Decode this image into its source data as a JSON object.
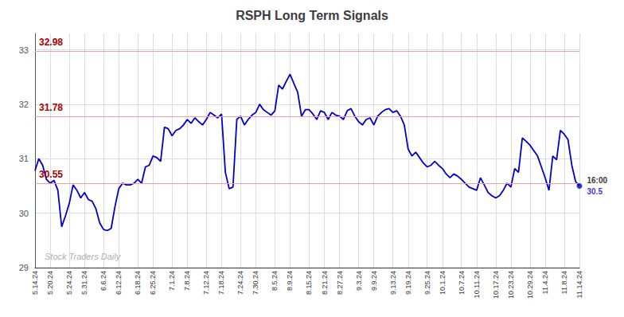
{
  "chart_data": {
    "type": "line",
    "title": "RSPH Long Term Signals",
    "background_color": "#ffffff",
    "color": "#0000cc",
    "marker": "circle",
    "grid": true,
    "ylim": [
      29,
      33.3
    ],
    "yticks": [
      29,
      30,
      31,
      32,
      33
    ],
    "hlines": [
      32.98,
      31.78,
      30.55
    ],
    "hline_color": "#f5a0a0",
    "hline_label_color": "#aa0000",
    "watermark": "Stock Traders Daily",
    "watermark_color": "#b0b0b0",
    "annotations": [
      {
        "text": "16:00",
        "color": "#000000"
      },
      {
        "text": "30.5",
        "color": "#0000cc"
      }
    ],
    "categories": [
      "5.14.24",
      null,
      null,
      null,
      "5.20.24",
      null,
      null,
      null,
      null,
      "5.24.24",
      null,
      null,
      null,
      "5.31.24",
      null,
      null,
      null,
      null,
      "6.6.24",
      null,
      null,
      null,
      "6.12.24",
      null,
      null,
      null,
      null,
      "6.18.24",
      null,
      null,
      null,
      "6.25.24",
      null,
      null,
      null,
      null,
      "7.1.24",
      null,
      null,
      null,
      "7.8.24",
      null,
      null,
      null,
      null,
      "7.12.24",
      null,
      null,
      null,
      "7.18.24",
      null,
      null,
      null,
      null,
      "7.24.24",
      null,
      null,
      null,
      "7.30.24",
      null,
      null,
      null,
      null,
      "8.5.24",
      null,
      null,
      null,
      "8.9.24",
      null,
      null,
      null,
      null,
      "8.15.24",
      null,
      null,
      null,
      "8.21.24",
      null,
      null,
      null,
      "8.27.24",
      null,
      null,
      null,
      null,
      "9.3.24",
      null,
      null,
      null,
      "9.9.24",
      null,
      null,
      null,
      null,
      "9.13.24",
      null,
      null,
      null,
      "9.19.24",
      null,
      null,
      null,
      null,
      "9.25.24",
      null,
      null,
      null,
      "10.1.24",
      null,
      null,
      null,
      null,
      "10.7.24",
      null,
      null,
      null,
      "10.11.24",
      null,
      null,
      null,
      null,
      "10.17.24",
      null,
      null,
      null,
      "10.23.24",
      null,
      null,
      null,
      null,
      "10.29.24",
      null,
      null,
      null,
      "11.4.24",
      null,
      null,
      null,
      null,
      "11.8.24",
      null,
      null,
      null,
      "11.14.24"
    ],
    "values": [
      30.78,
      31.0,
      30.88,
      30.62,
      30.55,
      30.6,
      30.42,
      29.75,
      29.95,
      30.18,
      30.52,
      30.42,
      30.28,
      30.38,
      30.25,
      30.22,
      30.08,
      29.82,
      29.7,
      29.68,
      29.72,
      30.12,
      30.45,
      30.55,
      30.52,
      30.52,
      30.55,
      30.62,
      30.55,
      30.85,
      30.88,
      31.05,
      31.02,
      30.95,
      31.58,
      31.55,
      31.42,
      31.52,
      31.55,
      31.62,
      31.72,
      31.65,
      31.75,
      31.68,
      31.62,
      31.72,
      31.85,
      31.8,
      31.75,
      31.82,
      30.75,
      30.45,
      30.48,
      31.72,
      31.78,
      31.62,
      31.72,
      31.8,
      31.85,
      32.0,
      31.9,
      31.85,
      31.8,
      31.88,
      32.35,
      32.28,
      32.42,
      32.55,
      32.38,
      32.22,
      31.78,
      31.9,
      31.9,
      31.82,
      31.72,
      31.88,
      31.85,
      31.72,
      31.85,
      31.8,
      31.78,
      31.72,
      31.88,
      31.92,
      31.78,
      31.68,
      31.62,
      31.72,
      31.75,
      31.62,
      31.78,
      31.85,
      31.9,
      31.92,
      31.85,
      31.88,
      31.78,
      31.62,
      31.18,
      31.05,
      31.12,
      31.02,
      30.92,
      30.85,
      30.88,
      30.95,
      30.88,
      30.82,
      30.72,
      30.65,
      30.72,
      30.68,
      30.62,
      30.55,
      30.48,
      30.45,
      30.42,
      30.65,
      30.52,
      30.38,
      30.32,
      30.28,
      30.32,
      30.42,
      30.55,
      30.48,
      30.82,
      30.75,
      31.38,
      31.32,
      31.25,
      31.15,
      31.05,
      30.85,
      30.65,
      30.42,
      31.05,
      30.98,
      31.52,
      31.45,
      31.35,
      30.88,
      30.58,
      30.5
    ]
  }
}
